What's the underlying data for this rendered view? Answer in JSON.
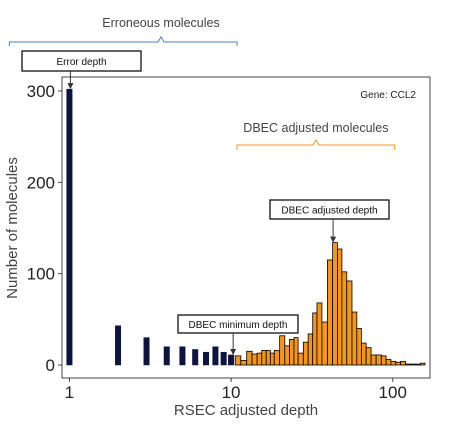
{
  "chart_data": {
    "type": "bar",
    "gene_label": "Gene: CCL2",
    "xlabel": "RSEC adjusted depth",
    "ylabel": "Number of molecules",
    "x_scale": "log10",
    "xlim": [
      0.9,
      170
    ],
    "ylim": [
      0,
      320
    ],
    "x_ticks": [
      1,
      10,
      100
    ],
    "y_ticks": [
      0,
      100,
      200,
      300
    ],
    "grid": false,
    "legend": "none",
    "colors": {
      "erroneous": "#0d1440",
      "dbec": "#f3971c",
      "bracket_blue": "#4a7fc1",
      "bracket_orange": "#f3971c"
    },
    "series": [
      {
        "name": "Erroneous molecules",
        "points": [
          {
            "x": 1,
            "y": 302
          },
          {
            "x": 2,
            "y": 43
          },
          {
            "x": 3,
            "y": 30
          },
          {
            "x": 4,
            "y": 20
          },
          {
            "x": 5,
            "y": 20
          },
          {
            "x": 6,
            "y": 17
          },
          {
            "x": 7,
            "y": 14
          },
          {
            "x": 8,
            "y": 20
          },
          {
            "x": 9,
            "y": 14
          },
          {
            "x": 10,
            "y": 11
          }
        ]
      },
      {
        "name": "DBEC adjusted molecules",
        "points": [
          {
            "x": 11,
            "y": 10
          },
          {
            "x": 12,
            "y": 5
          },
          {
            "x": 13,
            "y": 15
          },
          {
            "x": 14,
            "y": 12
          },
          {
            "x": 15,
            "y": 13
          },
          {
            "x": 16,
            "y": 16
          },
          {
            "x": 17,
            "y": 16
          },
          {
            "x": 18,
            "y": 13
          },
          {
            "x": 19,
            "y": 16
          },
          {
            "x": 21,
            "y": 32
          },
          {
            "x": 22,
            "y": 21
          },
          {
            "x": 24,
            "y": 28
          },
          {
            "x": 25,
            "y": 30
          },
          {
            "x": 27,
            "y": 13
          },
          {
            "x": 29,
            "y": 25
          },
          {
            "x": 31,
            "y": 34
          },
          {
            "x": 33,
            "y": 57
          },
          {
            "x": 35,
            "y": 68
          },
          {
            "x": 38,
            "y": 47
          },
          {
            "x": 41,
            "y": 115
          },
          {
            "x": 44,
            "y": 134
          },
          {
            "x": 47,
            "y": 127
          },
          {
            "x": 50,
            "y": 102
          },
          {
            "x": 54,
            "y": 92
          },
          {
            "x": 58,
            "y": 58
          },
          {
            "x": 62,
            "y": 40
          },
          {
            "x": 66,
            "y": 24
          },
          {
            "x": 71,
            "y": 19
          },
          {
            "x": 76,
            "y": 11
          },
          {
            "x": 82,
            "y": 11
          },
          {
            "x": 88,
            "y": 10
          },
          {
            "x": 94,
            "y": 6
          },
          {
            "x": 101,
            "y": 4
          },
          {
            "x": 108,
            "y": 3
          },
          {
            "x": 116,
            "y": 4
          },
          {
            "x": 124,
            "y": 1
          },
          {
            "x": 133,
            "y": 1
          },
          {
            "x": 143,
            "y": 1
          },
          {
            "x": 153,
            "y": 2
          }
        ]
      }
    ],
    "annotations": {
      "erroneous_label": "Erroneous molecules",
      "erroneous_range": [
        1,
        10
      ],
      "dbec_label": "DBEC adjusted molecules",
      "dbec_range": [
        10,
        100
      ],
      "error_depth": {
        "label": "Error depth",
        "x": 1,
        "y": 302
      },
      "dbec_minimum_depth": {
        "label": "DBEC minimum depth",
        "x": 10.3,
        "y": 11
      },
      "dbec_adjusted_depth": {
        "label": "DBEC adjusted depth",
        "x": 44,
        "y": 134
      }
    }
  }
}
